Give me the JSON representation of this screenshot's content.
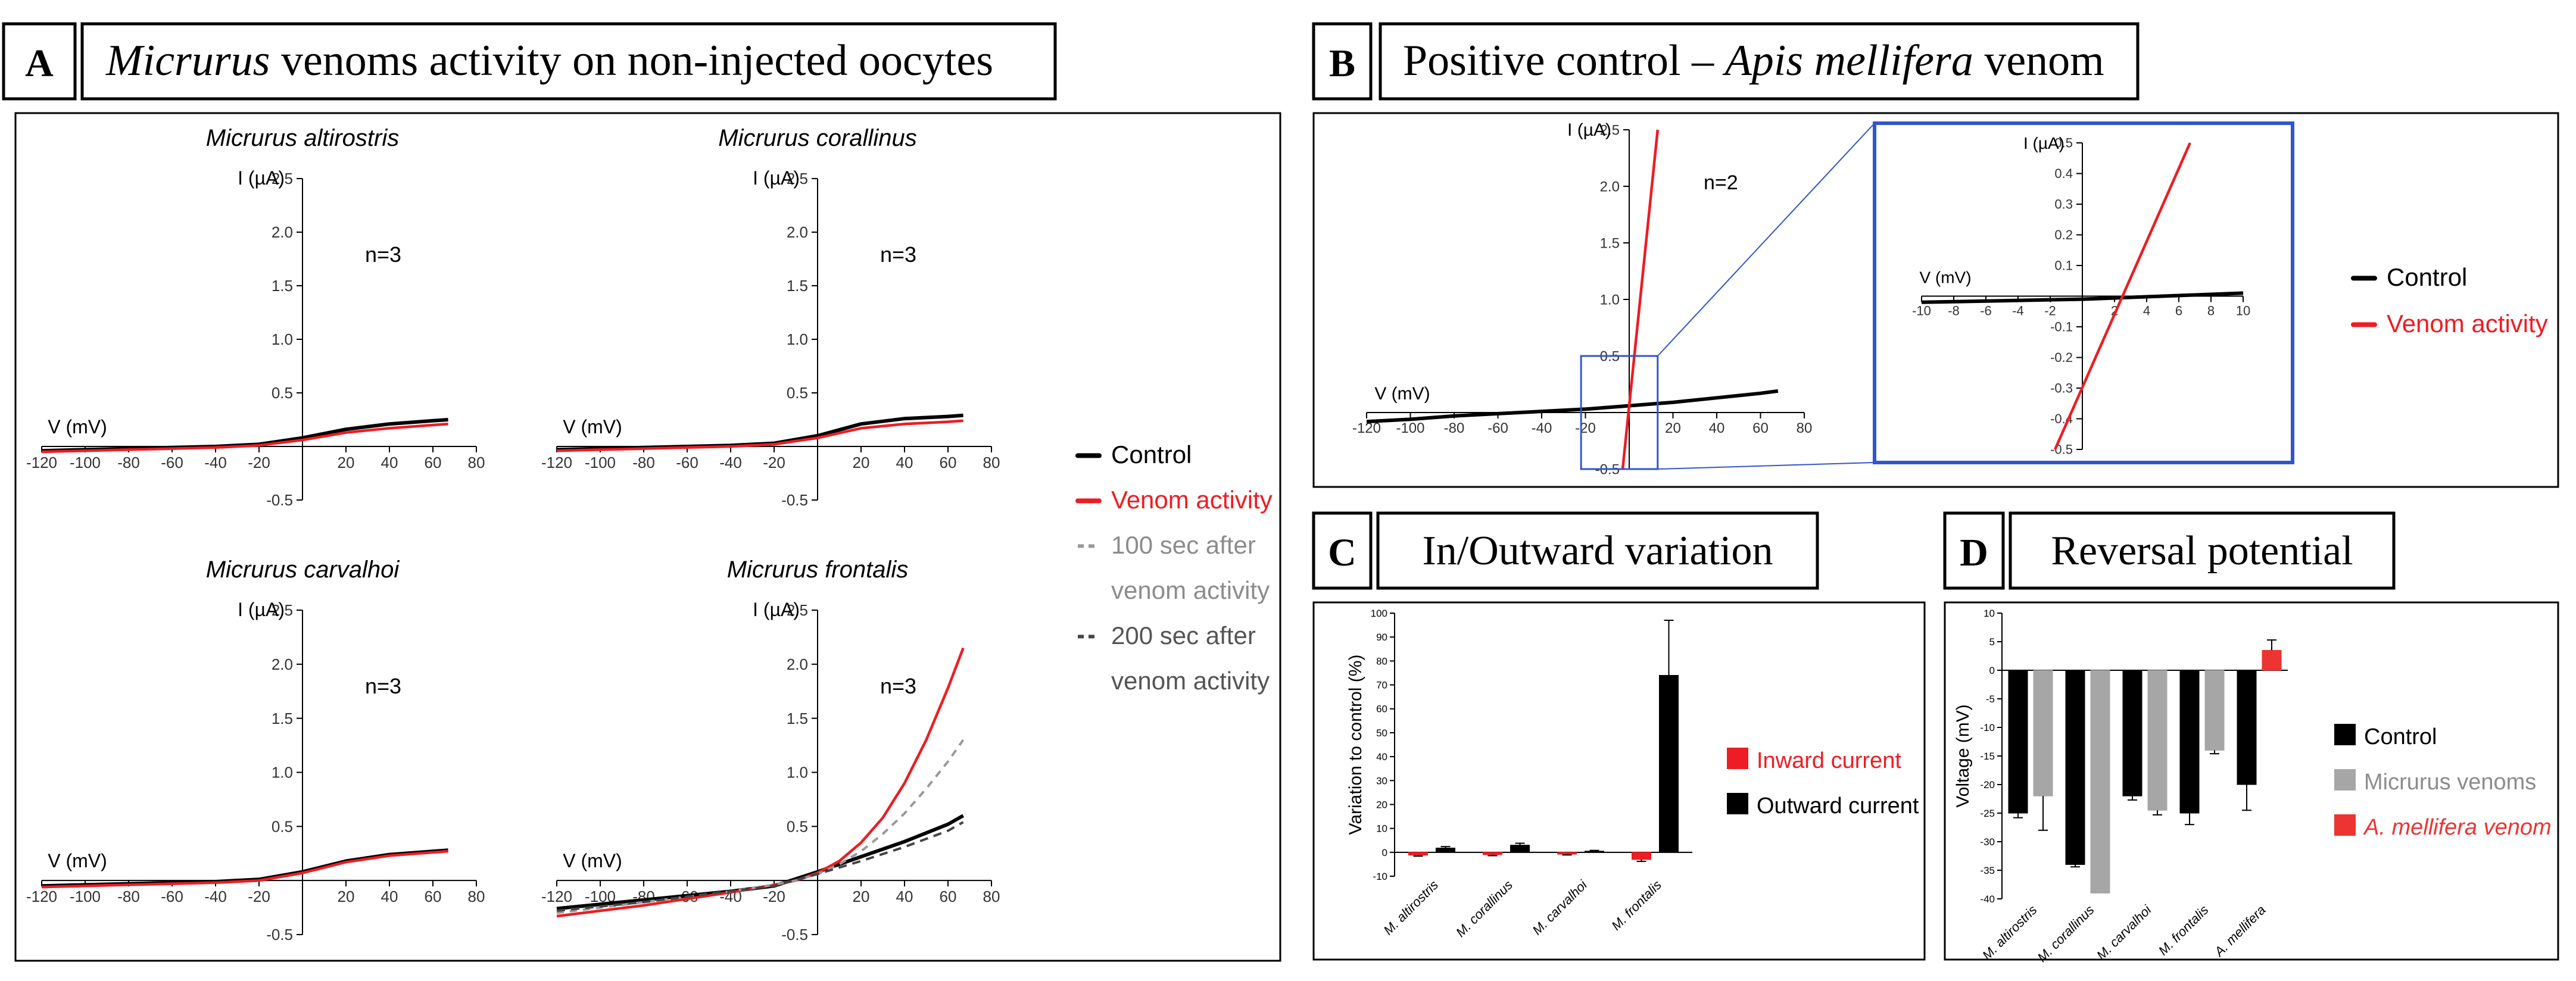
{
  "colors": {
    "control": "#000000",
    "venom": "#ee1c24",
    "grey": "#999999",
    "dark_dashed": "#444444",
    "zoom_box": "#3355cc",
    "bar_grey": "#a6a6a6",
    "bar_red": "#ee3333"
  },
  "panel_a": {
    "letter": "A",
    "title_italic": "Micrurus",
    "title_rest": " venoms activity on non-injected oocytes",
    "legend": [
      {
        "label": "Control",
        "style": "control"
      },
      {
        "label": "Venom activity",
        "style": "venom"
      },
      {
        "label": "100 sec after",
        "label2": "venom activity",
        "style": "grey"
      },
      {
        "label": "200 sec after",
        "label2": "venom activity",
        "style": "dark_dashed"
      }
    ]
  },
  "panel_b": {
    "letter": "B",
    "title_rest": "Positive control – ",
    "title_italic": "Apis mellifera",
    "title_tail": " venom",
    "legend": [
      {
        "label": "Control",
        "style": "control"
      },
      {
        "label": "Venom activity",
        "style": "venom"
      }
    ]
  },
  "panel_c": {
    "letter": "C",
    "title": "In/Outward variation"
  },
  "panel_d": {
    "letter": "D",
    "title": "Reversal potential"
  },
  "chart_data": [
    {
      "id": "iv_altirostris",
      "type": "line",
      "title": "Micrurus altirostris",
      "xlabel": "V (mV)",
      "ylabel": "I (µA)",
      "annotation": "n=3",
      "xlim": [
        -120,
        80
      ],
      "ylim": [
        -0.5,
        2.5
      ],
      "xticks": [
        -120,
        -100,
        -80,
        -60,
        -40,
        -20,
        20,
        40,
        60,
        80
      ],
      "yticks": [
        -0.5,
        0.5,
        1.0,
        1.5,
        2.0,
        2.5
      ],
      "series": [
        {
          "name": "Control",
          "style": "control",
          "x": [
            -120,
            -100,
            -80,
            -60,
            -40,
            -20,
            0,
            20,
            40,
            60,
            67
          ],
          "y": [
            -0.04,
            -0.03,
            -0.02,
            -0.01,
            0.0,
            0.02,
            0.08,
            0.16,
            0.21,
            0.24,
            0.25
          ]
        },
        {
          "name": "Venom activity",
          "style": "venom",
          "x": [
            -120,
            -100,
            -80,
            -60,
            -40,
            -20,
            0,
            20,
            40,
            60,
            67
          ],
          "y": [
            -0.05,
            -0.04,
            -0.03,
            -0.02,
            -0.01,
            0.01,
            0.06,
            0.13,
            0.17,
            0.2,
            0.21
          ]
        }
      ]
    },
    {
      "id": "iv_corallinus",
      "type": "line",
      "title": "Micrurus corallinus",
      "xlabel": "V (mV)",
      "ylabel": "I (µA)",
      "annotation": "n=3",
      "xlim": [
        -120,
        80
      ],
      "ylim": [
        -0.5,
        2.5
      ],
      "xticks": [
        -120,
        -100,
        -80,
        -60,
        -40,
        -20,
        20,
        40,
        60,
        80
      ],
      "yticks": [
        -0.5,
        0.5,
        1.0,
        1.5,
        2.0,
        2.5
      ],
      "series": [
        {
          "name": "Control",
          "style": "control",
          "x": [
            -120,
            -100,
            -80,
            -60,
            -40,
            -20,
            0,
            20,
            40,
            60,
            67
          ],
          "y": [
            -0.03,
            -0.02,
            -0.01,
            0.0,
            0.01,
            0.03,
            0.1,
            0.21,
            0.26,
            0.28,
            0.29
          ]
        },
        {
          "name": "Venom activity",
          "style": "venom",
          "x": [
            -120,
            -100,
            -80,
            -60,
            -40,
            -20,
            0,
            20,
            40,
            60,
            67
          ],
          "y": [
            -0.04,
            -0.03,
            -0.02,
            -0.01,
            0.0,
            0.02,
            0.08,
            0.17,
            0.21,
            0.23,
            0.24
          ]
        }
      ]
    },
    {
      "id": "iv_carvalhoi",
      "type": "line",
      "title": "Micrurus carvalhoi",
      "xlabel": "V (mV)",
      "ylabel": "I (µA)",
      "annotation": "n=3",
      "xlim": [
        -120,
        80
      ],
      "ylim": [
        -0.5,
        2.5
      ],
      "xticks": [
        -120,
        -100,
        -80,
        -60,
        -40,
        -20,
        20,
        40,
        60,
        80
      ],
      "yticks": [
        -0.5,
        0.5,
        1.0,
        1.5,
        2.0,
        2.5
      ],
      "series": [
        {
          "name": "Control",
          "style": "control",
          "x": [
            -120,
            -100,
            -80,
            -60,
            -40,
            -20,
            0,
            20,
            40,
            60,
            67
          ],
          "y": [
            -0.05,
            -0.04,
            -0.03,
            -0.02,
            -0.01,
            0.01,
            0.08,
            0.18,
            0.24,
            0.27,
            0.28
          ]
        },
        {
          "name": "Venom activity",
          "style": "venom",
          "x": [
            -120,
            -100,
            -80,
            -60,
            -40,
            -20,
            0,
            20,
            40,
            60,
            67
          ],
          "y": [
            -0.06,
            -0.05,
            -0.04,
            -0.03,
            -0.02,
            0.0,
            0.07,
            0.17,
            0.23,
            0.26,
            0.27
          ]
        }
      ]
    },
    {
      "id": "iv_frontalis",
      "type": "line",
      "title": "Micrurus frontalis",
      "xlabel": "V (mV)",
      "ylabel": "I (µA)",
      "annotation": "n=3",
      "xlim": [
        -120,
        80
      ],
      "ylim": [
        -0.5,
        2.5
      ],
      "xticks": [
        -120,
        -100,
        -80,
        -60,
        -40,
        -20,
        20,
        40,
        60,
        80
      ],
      "yticks": [
        -0.5,
        0.5,
        1.0,
        1.5,
        2.0,
        2.5
      ],
      "series": [
        {
          "name": "Control",
          "style": "control",
          "x": [
            -120,
            -100,
            -80,
            -60,
            -40,
            -20,
            0,
            20,
            40,
            60,
            67
          ],
          "y": [
            -0.26,
            -0.22,
            -0.18,
            -0.14,
            -0.1,
            -0.05,
            0.08,
            0.22,
            0.36,
            0.52,
            0.6
          ]
        },
        {
          "name": "Venom activity",
          "style": "venom",
          "x": [
            -120,
            -100,
            -80,
            -60,
            -40,
            -20,
            -10,
            0,
            10,
            20,
            30,
            40,
            50,
            60,
            67
          ],
          "y": [
            -0.33,
            -0.28,
            -0.23,
            -0.17,
            -0.11,
            -0.04,
            0.0,
            0.07,
            0.18,
            0.35,
            0.58,
            0.9,
            1.3,
            1.78,
            2.15
          ]
        },
        {
          "name": "100 sec after venom activity",
          "style": "grey",
          "x": [
            -120,
            -100,
            -80,
            -60,
            -40,
            -20,
            -10,
            0,
            10,
            20,
            30,
            40,
            50,
            60,
            67
          ],
          "y": [
            -0.3,
            -0.25,
            -0.2,
            -0.15,
            -0.1,
            -0.04,
            0.0,
            0.06,
            0.15,
            0.27,
            0.43,
            0.62,
            0.85,
            1.1,
            1.3
          ]
        },
        {
          "name": "200 sec after venom activity",
          "style": "dark_dashed",
          "x": [
            -120,
            -100,
            -80,
            -60,
            -40,
            -20,
            0,
            20,
            40,
            60,
            67
          ],
          "y": [
            -0.28,
            -0.24,
            -0.2,
            -0.15,
            -0.1,
            -0.05,
            0.06,
            0.18,
            0.31,
            0.46,
            0.54
          ]
        }
      ]
    },
    {
      "id": "iv_apis",
      "type": "line",
      "title": "",
      "xlabel": "V (mV)",
      "ylabel": "I (µA)",
      "annotation": "n=2",
      "xlim": [
        -120,
        80
      ],
      "ylim": [
        -0.5,
        2.5
      ],
      "xticks": [
        -120,
        -100,
        -80,
        -60,
        -40,
        -20,
        20,
        40,
        60,
        80
      ],
      "yticks": [
        -0.5,
        0.5,
        1.0,
        1.5,
        2.0,
        2.5
      ],
      "series": [
        {
          "name": "Control",
          "style": "control",
          "x": [
            -120,
            -100,
            -80,
            -60,
            -40,
            -20,
            0,
            20,
            40,
            60,
            68
          ],
          "y": [
            -0.08,
            -0.06,
            -0.03,
            -0.01,
            0.01,
            0.03,
            0.06,
            0.09,
            0.13,
            0.17,
            0.19
          ]
        },
        {
          "name": "Venom activity",
          "style": "venom",
          "x": [
            -3,
            13
          ],
          "y": [
            -0.5,
            2.5
          ]
        }
      ]
    },
    {
      "id": "iv_apis_zoom",
      "type": "line",
      "title": "",
      "xlabel": "V (mV)",
      "ylabel": "I (µA)",
      "xlim": [
        -10,
        10
      ],
      "ylim": [
        -0.5,
        0.5
      ],
      "xticks": [
        -10,
        -8,
        -6,
        -4,
        -2,
        2,
        4,
        6,
        8,
        10
      ],
      "yticks": [
        -0.5,
        -0.4,
        -0.3,
        -0.2,
        -0.1,
        0.1,
        0.2,
        0.3,
        0.4,
        0.5
      ],
      "series": [
        {
          "name": "Control",
          "style": "control",
          "x": [
            -10,
            -5,
            0,
            5,
            10
          ],
          "y": [
            -0.02,
            -0.015,
            -0.01,
            0.0,
            0.01
          ]
        },
        {
          "name": "Venom activity",
          "style": "venom",
          "x": [
            -1.7,
            6.7
          ],
          "y": [
            -0.5,
            0.5
          ]
        }
      ]
    },
    {
      "id": "inout_variation",
      "type": "bar",
      "title": "In/Outward variation",
      "xlabel": "",
      "ylabel": "Variation to control (%)",
      "ylim": [
        -10,
        100
      ],
      "yticks": [
        -10,
        0,
        10,
        20,
        30,
        40,
        50,
        60,
        70,
        80,
        90,
        100
      ],
      "categories": [
        "M. altirostris",
        "M. corallinus",
        "M. carvalhoi",
        "M. frontalis"
      ],
      "series": [
        {
          "name": "Inward current",
          "color": "#ee1c24",
          "values": [
            -1.2,
            -1.0,
            -0.8,
            -3.0
          ],
          "errors": [
            0.4,
            0.4,
            0.3,
            0.8
          ]
        },
        {
          "name": "Outward current",
          "color": "#000000",
          "values": [
            1.8,
            3.0,
            0.5,
            74
          ],
          "errors": [
            0.6,
            0.8,
            0.3,
            23
          ]
        }
      ]
    },
    {
      "id": "reversal_potential",
      "type": "bar",
      "title": "Reversal potential",
      "xlabel": "",
      "ylabel": "Voltage (mV)",
      "ylim": [
        -40,
        10
      ],
      "yticks": [
        -40,
        -35,
        -30,
        -25,
        -20,
        -15,
        -10,
        -5,
        0,
        5,
        10
      ],
      "categories": [
        "M. altirostris",
        "M. corallinus",
        "M. carvalhoi",
        "M. frontalis",
        "A. mellifera"
      ],
      "series": [
        {
          "name": "Control",
          "color": "#000000",
          "values": [
            -25,
            -34,
            -22,
            -25,
            -20
          ],
          "errors": [
            0.8,
            0.4,
            0.7,
            2,
            4.5
          ]
        },
        {
          "name": "Micrurus venoms",
          "color": "#a6a6a6",
          "values": [
            -22,
            -39,
            -24.5,
            -14,
            null
          ],
          "errors": [
            6,
            0,
            0.8,
            0.6,
            null
          ]
        },
        {
          "name": "A. mellifera venom",
          "color": "#ee3333",
          "values": [
            null,
            null,
            null,
            null,
            3.5
          ],
          "errors": [
            null,
            null,
            null,
            null,
            1.8
          ]
        }
      ]
    }
  ]
}
